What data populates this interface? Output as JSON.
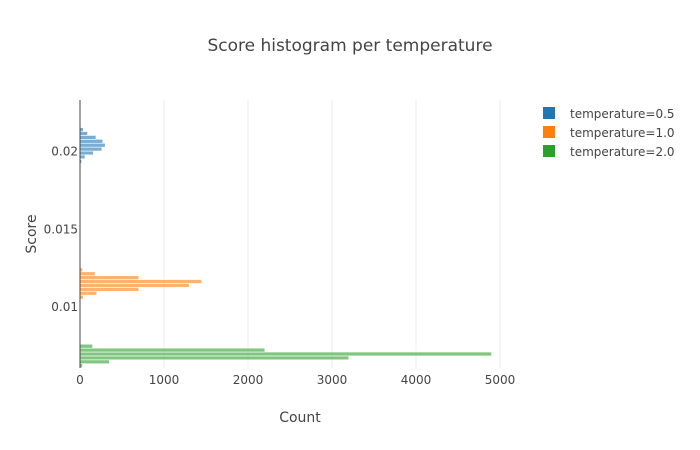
{
  "chart_data": {
    "type": "bar",
    "orientation": "horizontal",
    "title": "Score histogram per temperature",
    "xlabel": "Count",
    "ylabel": "Score",
    "xlim": [
      0,
      5000
    ],
    "ylim": [
      0.0061,
      0.0233
    ],
    "x_ticks": [
      "0",
      "1000",
      "2000",
      "3000",
      "4000",
      "5000"
    ],
    "y_ticks": [
      {
        "value": 0.01,
        "label": "0.01"
      },
      {
        "value": 0.015,
        "label": "0.015"
      },
      {
        "value": 0.02,
        "label": "0.02"
      }
    ],
    "grid": "vertical",
    "legend_position": "top-right",
    "series": [
      {
        "name": "temperature=0.5",
        "color": "#1f77b4",
        "bins": [
          {
            "y": 0.01935,
            "count": 20
          },
          {
            "y": 0.01965,
            "count": 60
          },
          {
            "y": 0.0199,
            "count": 160
          },
          {
            "y": 0.02015,
            "count": 260
          },
          {
            "y": 0.0204,
            "count": 300
          },
          {
            "y": 0.02065,
            "count": 270
          },
          {
            "y": 0.0209,
            "count": 190
          },
          {
            "y": 0.02115,
            "count": 90
          },
          {
            "y": 0.0214,
            "count": 40
          },
          {
            "y": 0.02165,
            "count": 10
          }
        ]
      },
      {
        "name": "temperature=1.0",
        "color": "#ff7f0e",
        "bins": [
          {
            "y": 0.01065,
            "count": 40
          },
          {
            "y": 0.0109,
            "count": 200
          },
          {
            "y": 0.01115,
            "count": 700
          },
          {
            "y": 0.0114,
            "count": 1300
          },
          {
            "y": 0.01165,
            "count": 1450
          },
          {
            "y": 0.0119,
            "count": 700
          },
          {
            "y": 0.01215,
            "count": 180
          },
          {
            "y": 0.0124,
            "count": 30
          }
        ]
      },
      {
        "name": "temperature=2.0",
        "color": "#2ca02c",
        "bins": [
          {
            "y": 0.00625,
            "count": 30
          },
          {
            "y": 0.0065,
            "count": 350
          },
          {
            "y": 0.00675,
            "count": 3200
          },
          {
            "y": 0.007,
            "count": 4900
          },
          {
            "y": 0.00725,
            "count": 2200
          },
          {
            "y": 0.0075,
            "count": 150
          }
        ]
      }
    ]
  }
}
